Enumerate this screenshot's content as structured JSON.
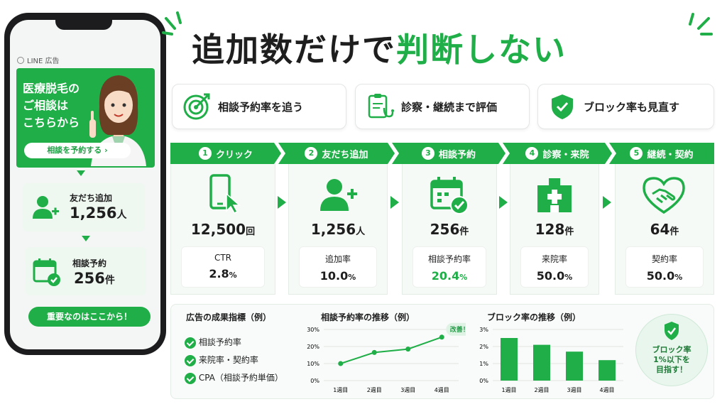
{
  "phone": {
    "ad_label": "LINE 広告",
    "banner_lines": [
      "医療脱毛の",
      "ご相談は",
      "こちらから"
    ],
    "banner_button": "相談を予約する ›",
    "friends_label": "友だち追加",
    "friends_value": "1,256",
    "friends_unit": "人",
    "consult_label": "相談予約",
    "consult_value": "256",
    "consult_unit": "件",
    "footer_button": "重要なのはここから！"
  },
  "title": {
    "part1": "追加数だけで",
    "part2": "判断しない"
  },
  "chips": [
    {
      "label": "相談予約率を追う",
      "icon": "target-icon"
    },
    {
      "label": "診察・継続まで評価",
      "icon": "clipboard-stethoscope-icon"
    },
    {
      "label": "ブロック率も見直す",
      "icon": "shield-check-icon"
    }
  ],
  "steps": [
    {
      "num": "1",
      "label": "クリック",
      "icon": "smartphone-click-icon",
      "value": "12,500",
      "unit": "回",
      "rate_label": "CTR",
      "rate_value": "2.8",
      "rate_unit": "%"
    },
    {
      "num": "2",
      "label": "友だち追加",
      "icon": "add-user-icon",
      "value": "1,256",
      "unit": "人",
      "rate_label": "追加率",
      "rate_value": "10.0",
      "rate_unit": "%"
    },
    {
      "num": "3",
      "label": "相談予約",
      "icon": "calendar-check-icon",
      "value": "256",
      "unit": "件",
      "rate_label": "相談予約率",
      "rate_value": "20.4",
      "rate_unit": "%"
    },
    {
      "num": "4",
      "label": "診察・来院",
      "icon": "hospital-icon",
      "value": "128",
      "unit": "件",
      "rate_label": "来院率",
      "rate_value": "50.0",
      "rate_unit": "%"
    },
    {
      "num": "5",
      "label": "継続・契約",
      "icon": "handshake-heart-icon",
      "value": "64",
      "unit": "件",
      "rate_label": "契約率",
      "rate_value": "50.0",
      "rate_unit": "%"
    }
  ],
  "metrics": {
    "title": "広告の成果指標（例）",
    "items": [
      "相談予約率",
      "来院率・契約率",
      "CPA（相談予約単価）"
    ]
  },
  "badge": {
    "lines": [
      "ブロック率",
      "1%以下を",
      "目指す！"
    ]
  },
  "colors": {
    "accent": "#1fae47",
    "accent_light": "#eef8f1"
  },
  "chart_data": [
    {
      "type": "line",
      "title": "相談予約率の推移（例）",
      "categories": [
        "1週目",
        "2週目",
        "3週目",
        "4週目"
      ],
      "values": [
        10,
        16.5,
        18.5,
        25.5
      ],
      "ylim": [
        0,
        30
      ],
      "yticks": [
        "0%",
        "10%",
        "20%",
        "30%"
      ],
      "annotation": "改善！"
    },
    {
      "type": "bar",
      "title": "ブロック率の推移（例）",
      "categories": [
        "1週目",
        "2週目",
        "3週目",
        "4週目"
      ],
      "values": [
        2.5,
        2.1,
        1.7,
        1.2
      ],
      "ylim": [
        0,
        3
      ],
      "yticks": [
        "0%",
        "1%",
        "2%",
        "3%"
      ]
    }
  ]
}
